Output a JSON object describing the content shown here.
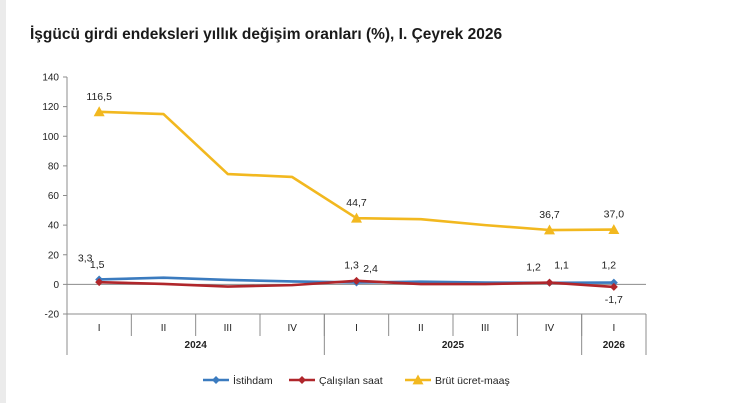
{
  "title": "İşgücü girdi endeksleri yıllık değişim oranları (%), I. Çeyrek 2026",
  "chart_data": {
    "type": "line",
    "title": "İşgücü girdi endeksleri yıllık değişim oranları (%), I. Çeyrek 2026",
    "xlabel": "",
    "ylabel": "",
    "ylim": [
      -20,
      140
    ],
    "yticks": [
      "140",
      "120",
      "100",
      "80",
      "60",
      "40",
      "20",
      "0",
      "-20"
    ],
    "ytick_values": [
      140,
      120,
      100,
      80,
      60,
      40,
      20,
      0,
      -20
    ],
    "categories": [
      "I",
      "II",
      "III",
      "IV",
      "I",
      "II",
      "III",
      "IV",
      "I"
    ],
    "year_groups": [
      {
        "label": "2024",
        "count": 4
      },
      {
        "label": "2025",
        "count": 4
      },
      {
        "label": "2026",
        "count": 1
      }
    ],
    "grid": false,
    "legend_position": "bottom",
    "series": [
      {
        "name": "İstihdam",
        "color": "#3b7bbf",
        "marker": "diamond",
        "values": [
          3.3,
          4.5,
          3.0,
          2.0,
          1.3,
          1.8,
          1.2,
          1.1,
          1.2
        ],
        "labels": [
          "3,3",
          "",
          "",
          "",
          "1,3",
          "",
          "",
          "1,1",
          "1,2"
        ]
      },
      {
        "name": "Çalışılan saat",
        "color": "#b0262b",
        "marker": "diamond",
        "values": [
          1.5,
          0.3,
          -1.5,
          -0.5,
          2.4,
          0.2,
          0.2,
          1.2,
          -1.7
        ],
        "labels": [
          "1,5",
          "",
          "",
          "",
          "2,4",
          "",
          "",
          "1,2",
          "-1,7"
        ]
      },
      {
        "name": "Brüt ücret-maaş",
        "color": "#f2b81f",
        "marker": "triangle",
        "values": [
          116.5,
          115.0,
          74.5,
          72.5,
          44.7,
          44.0,
          40.0,
          36.7,
          37.0
        ],
        "labels": [
          "116,5",
          "",
          "",
          "",
          "44,7",
          "",
          "",
          "36,7",
          "37,0"
        ]
      }
    ]
  }
}
